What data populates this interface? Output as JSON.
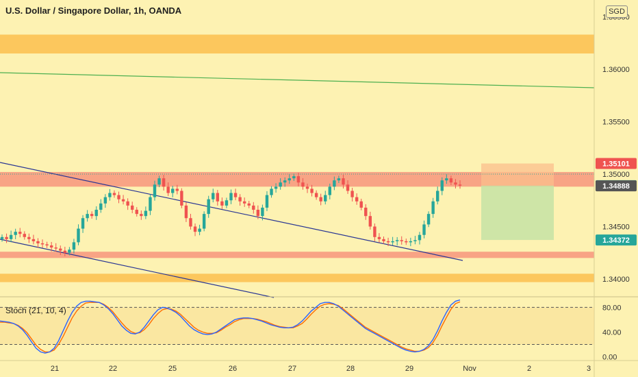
{
  "header": {
    "title": "U.S. Dollar / Singapore Dollar, 1h, OANDA",
    "currency": "SGD"
  },
  "colors": {
    "background": "#fdf2b2",
    "zone_orange": "#fbc04e",
    "zone_red": "#f7967c",
    "candle_up": "#26a69a",
    "candle_down": "#ef5350",
    "trendline_green": "#4caf50",
    "trendline_navy": "#283593",
    "stoch_k": "#2962ff",
    "stoch_d": "#ff6d00",
    "sl_box": "#fbbf8c",
    "tp_box": "#c5e3a4"
  },
  "chart_data": {
    "type": "candlestick",
    "title": "U.S. Dollar / Singapore Dollar, 1h, OANDA",
    "y_ticks": [
      "1.34000",
      "1.34500",
      "1.35000",
      "1.35500",
      "1.36000",
      "1.36500"
    ],
    "y_tick_values": [
      1.34,
      1.345,
      1.35,
      1.355,
      1.36,
      1.365
    ],
    "ylim": [
      1.3383,
      1.3666
    ],
    "x_ticks": [
      "21",
      "22",
      "25",
      "26",
      "27",
      "28",
      "29",
      "Nov",
      "2",
      "3"
    ],
    "x_tick_index": [
      80,
      165,
      252,
      340,
      427,
      512,
      598,
      686,
      773,
      860
    ],
    "price_labels": [
      {
        "text": "1.35101",
        "value": 1.35101,
        "color": "#ef5350"
      },
      {
        "text": "1.34890",
        "value": 1.3489,
        "color": "#26a69a"
      },
      {
        "text": "1.34888",
        "value": 1.34888,
        "color": "#555555"
      },
      {
        "text": "1.34372",
        "value": 1.34372,
        "color": "#26a69a"
      }
    ],
    "zones": [
      {
        "kind": "orange",
        "from": 1.3615,
        "to": 1.3633
      },
      {
        "kind": "red",
        "from": 1.3488,
        "to": 1.3502
      },
      {
        "kind": "red",
        "from": 1.342,
        "to": 1.3426
      },
      {
        "kind": "orange",
        "from": 1.3397,
        "to": 1.3405
      }
    ],
    "position_box": {
      "x_from": 703,
      "x_to": 809,
      "stop": 1.35101,
      "entry": 1.3489,
      "target": 1.34372
    },
    "closes": [
      1.344,
      1.3438,
      1.3442,
      1.3445,
      1.3443,
      1.344,
      1.3438,
      1.3436,
      1.3434,
      1.3433,
      1.3432,
      1.343,
      1.3429,
      1.3427,
      1.3425,
      1.3428,
      1.3435,
      1.3448,
      1.3458,
      1.3462,
      1.346,
      1.3466,
      1.3472,
      1.3478,
      1.3482,
      1.348,
      1.3476,
      1.3474,
      1.347,
      1.3466,
      1.3462,
      1.346,
      1.3465,
      1.3478,
      1.349,
      1.3496,
      1.3488,
      1.3482,
      1.3486,
      1.3484,
      1.347,
      1.3458,
      1.345,
      1.3445,
      1.3448,
      1.3462,
      1.3476,
      1.3482,
      1.3474,
      1.347,
      1.3475,
      1.3482,
      1.3478,
      1.3474,
      1.3472,
      1.347,
      1.3466,
      1.346,
      1.3468,
      1.348,
      1.3486,
      1.3488,
      1.3492,
      1.3494,
      1.3496,
      1.3498,
      1.3492,
      1.3488,
      1.3486,
      1.3482,
      1.3478,
      1.3474,
      1.348,
      1.3488,
      1.3494,
      1.3496,
      1.349,
      1.3484,
      1.3478,
      1.3474,
      1.3468,
      1.346,
      1.345,
      1.344,
      1.3438,
      1.3436,
      1.3435,
      1.3436,
      1.3437,
      1.3436,
      1.3435,
      1.3436,
      1.3437,
      1.3442,
      1.3452,
      1.3462,
      1.3474,
      1.3484,
      1.3494,
      1.3496,
      1.3492,
      1.349,
      1.3489
    ],
    "stoch": {
      "name": "Stoch (21, 10, 4)",
      "levels": [
        80,
        20
      ],
      "ticks": [
        "80.00",
        "40.00",
        "0.00"
      ],
      "tick_values": [
        80,
        40,
        0
      ],
      "ylim": [
        -6,
        96
      ],
      "k": [
        58,
        57,
        56,
        54,
        50,
        44,
        35,
        24,
        14,
        8,
        6,
        8,
        14,
        26,
        42,
        58,
        72,
        82,
        88,
        90,
        90,
        89,
        88,
        84,
        78,
        70,
        60,
        50,
        43,
        38,
        37,
        40,
        48,
        58,
        68,
        76,
        80,
        79,
        76,
        72,
        66,
        58,
        50,
        44,
        40,
        37,
        36,
        37,
        40,
        45,
        50,
        55,
        60,
        62,
        63,
        63,
        62,
        60,
        58,
        55,
        52,
        50,
        48,
        47,
        47,
        48,
        52,
        58,
        66,
        74,
        80,
        86,
        88,
        88,
        86,
        82,
        76,
        70,
        64,
        58,
        52,
        46,
        42,
        38,
        34,
        30,
        26,
        22,
        18,
        14,
        11,
        9,
        8,
        9,
        12,
        18,
        28,
        42,
        58,
        72,
        84,
        90,
        92
      ],
      "d": [
        56,
        56,
        55,
        54,
        51,
        46,
        39,
        29,
        19,
        12,
        8,
        8,
        11,
        20,
        33,
        48,
        63,
        74,
        82,
        87,
        88,
        88,
        88,
        85,
        80,
        73,
        64,
        55,
        47,
        41,
        38,
        39,
        44,
        52,
        62,
        70,
        76,
        78,
        77,
        74,
        69,
        62,
        55,
        48,
        43,
        40,
        38,
        38,
        39,
        43,
        48,
        52,
        57,
        60,
        62,
        62,
        62,
        61,
        59,
        57,
        54,
        51,
        49,
        48,
        47,
        47,
        50,
        54,
        61,
        69,
        76,
        82,
        85,
        86,
        85,
        83,
        78,
        72,
        66,
        60,
        54,
        48,
        44,
        40,
        36,
        32,
        28,
        24,
        20,
        16,
        13,
        11,
        9,
        9,
        11,
        15,
        23,
        35,
        50,
        64,
        77,
        86,
        89
      ]
    }
  }
}
